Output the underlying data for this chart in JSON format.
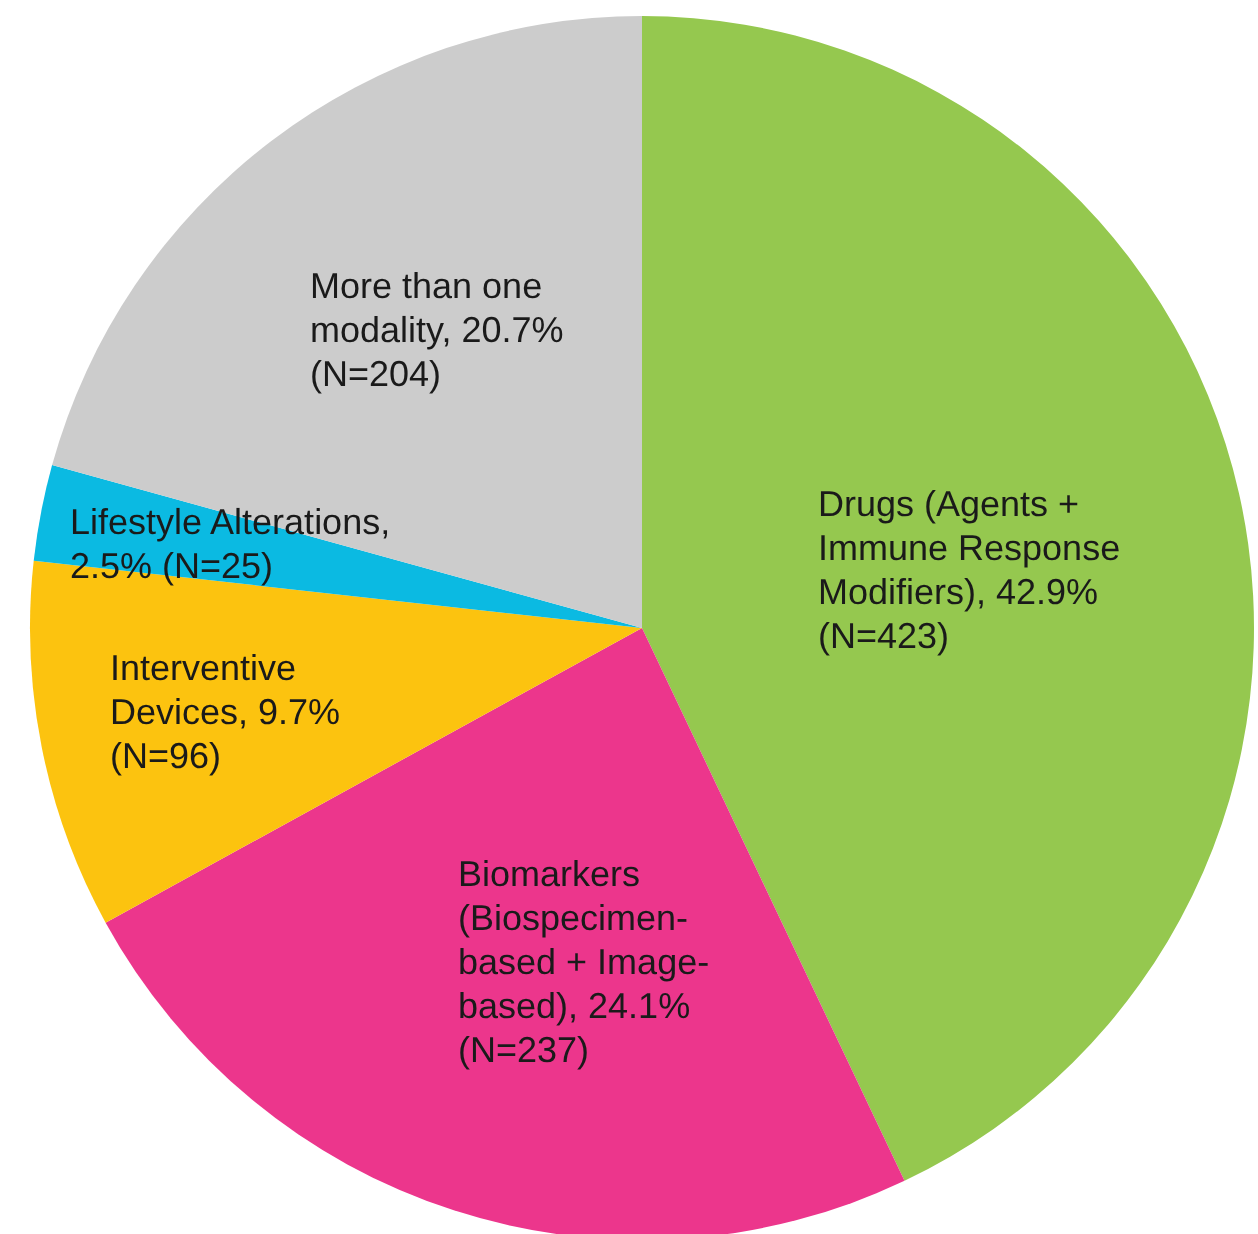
{
  "chart_data": {
    "type": "pie",
    "categories": [
      "Drugs (Agents + Immune Response Modifiers), 42.9% (N=423)",
      "Biomarkers (Biospecimen-based + Image-based), 24.1% (N=237)",
      "Interventive Devices, 9.7% (N=96)",
      "Lifestyle Alterations, 2.5% (N=25)",
      "More than one modality, 20.7% (N=204)"
    ],
    "values": [
      423,
      237,
      96,
      25,
      204
    ],
    "colors": [
      "#95c84f",
      "#ec368c",
      "#fcc30f",
      "#0bbae2",
      "#cccccc"
    ]
  }
}
